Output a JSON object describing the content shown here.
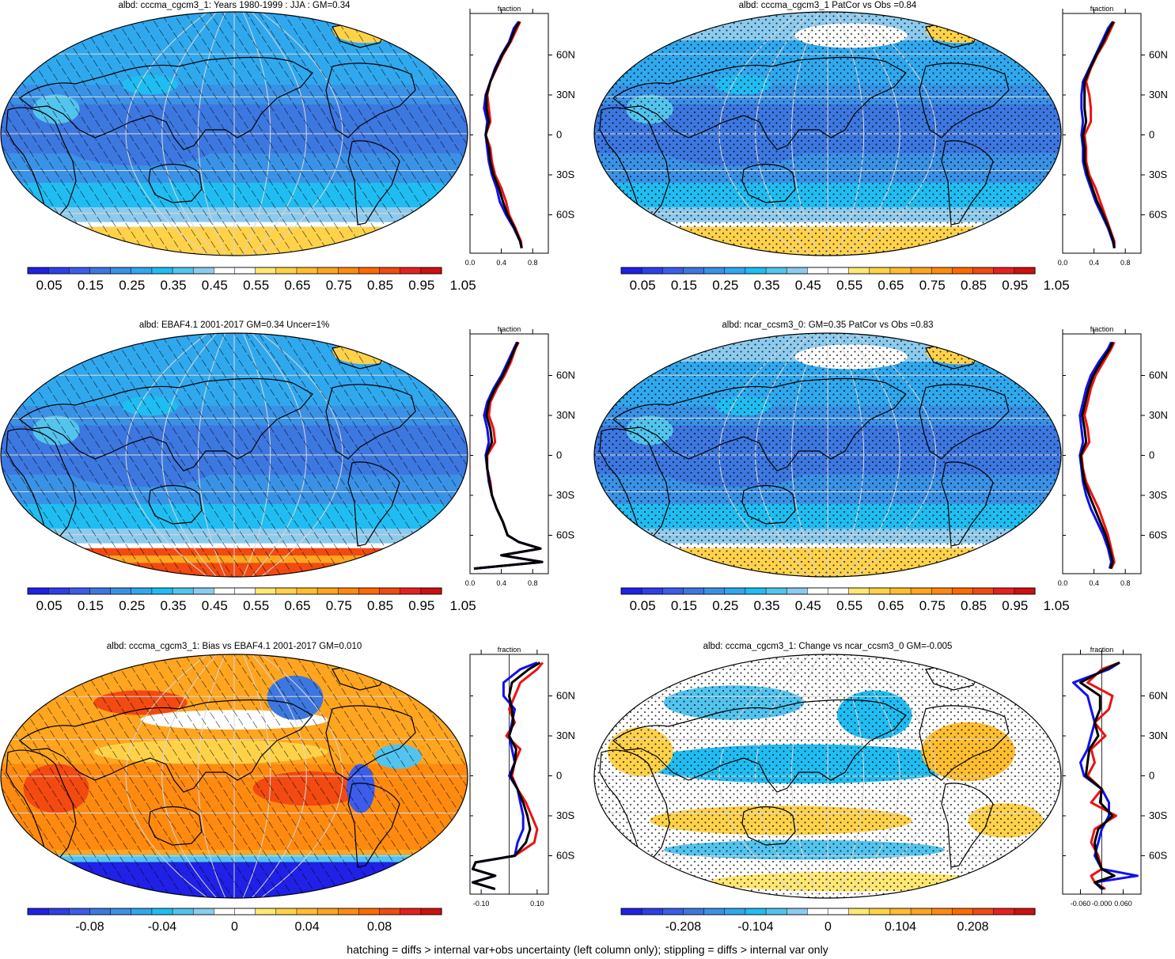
{
  "footnote": "hatching = diffs > internal var+obs uncertainty (left column only); stippling = diffs > internal var only",
  "panel_titles": [
    "albd: cccma_cgcm3_1: Years 1980-1999 : JJA : GM=0.34",
    "albd: cccma_cgcm3_1 PatCor vs Obs =0.84",
    "albd: EBAF4.1 2001-2017 GM=0.34 Uncer=1%",
    "albd: ncar_ccsm3_0: GM=0.35 PatCor vs Obs =0.83",
    "albd: cccma_cgcm3_1: Bias vs EBAF4.1 2001-2017 GM=0.010",
    "albd: cccma_cgcm3_1: Change vs ncar_ccsm3_0 GM=-0.005"
  ],
  "colors": {
    "scale": [
      "#2020e6",
      "#2e3ee8",
      "#3c5ce9",
      "#3d77e0",
      "#3a92e6",
      "#30a8ee",
      "#20bdf2",
      "#52c4ee",
      "#8ccbee",
      "#ffffff",
      "#ffffff",
      "#ffe873",
      "#ffd24a",
      "#ffbe30",
      "#ffa520",
      "#ff8a10",
      "#ff6a00",
      "#f24a10",
      "#e62020",
      "#cc1010"
    ],
    "model": "#ee1111",
    "obs": "#1111ee",
    "mean": "#000000",
    "land_outline": "#000000",
    "grid": "#d8d8d8"
  },
  "chart_data": [
    {
      "type": "heatmap",
      "title": "albd: cccma_cgcm3_1: Years 1980-1999 : JJA : GM=0.34",
      "map_style": "abs_model",
      "overlay": "hatching",
      "colorbar_labels": [
        "0.05",
        "0.15",
        "0.25",
        "0.35",
        "0.45",
        "0.55",
        "0.65",
        "0.75",
        "0.85",
        "0.95",
        "1.05"
      ],
      "zonal": {
        "xlabel": "fraction",
        "xlim": [
          0,
          1.0
        ],
        "xticks": [
          "0.0",
          "0.4",
          "0.8"
        ],
        "yticks": [
          "60N",
          "30N",
          "0",
          "30S",
          "60S"
        ],
        "lat": [
          85,
          80,
          70,
          60,
          50,
          40,
          30,
          20,
          10,
          0,
          -10,
          -20,
          -30,
          -40,
          -50,
          -60,
          -70,
          -80,
          -85
        ],
        "series": [
          {
            "role": "model",
            "values": [
              0.64,
              0.6,
              0.52,
              0.42,
              0.34,
              0.26,
              0.22,
              0.24,
              0.26,
              0.2,
              0.26,
              0.28,
              0.32,
              0.4,
              0.46,
              0.5,
              0.58,
              0.65,
              0.66
            ]
          },
          {
            "role": "obs",
            "values": [
              0.62,
              0.56,
              0.5,
              0.4,
              0.32,
              0.26,
              0.2,
              0.18,
              0.22,
              0.2,
              0.22,
              0.24,
              0.28,
              0.34,
              0.38,
              0.46,
              0.56,
              0.64,
              0.66
            ]
          },
          {
            "role": "mean",
            "values": [
              0.63,
              0.58,
              0.51,
              0.41,
              0.33,
              0.26,
              0.21,
              0.21,
              0.24,
              0.2,
              0.24,
              0.26,
              0.3,
              0.37,
              0.42,
              0.48,
              0.57,
              0.64,
              0.66
            ]
          }
        ]
      }
    },
    {
      "type": "heatmap",
      "title": "albd: cccma_cgcm3_1 PatCor vs Obs =0.84",
      "map_style": "abs_ncar",
      "overlay": "stipple",
      "colorbar_labels": [
        "0.05",
        "0.15",
        "0.25",
        "0.35",
        "0.45",
        "0.55",
        "0.65",
        "0.75",
        "0.85",
        "0.95",
        "1.05"
      ],
      "zonal": {
        "xlabel": "fraction",
        "xlim": [
          0,
          1.0
        ],
        "xticks": [
          "0.0",
          "0.4",
          "0.8"
        ],
        "yticks": [
          "60N",
          "30N",
          "0",
          "30S",
          "60S"
        ],
        "lat": [
          85,
          80,
          70,
          60,
          50,
          40,
          30,
          20,
          10,
          0,
          -10,
          -20,
          -30,
          -40,
          -50,
          -60,
          -70,
          -80,
          -85
        ],
        "series": [
          {
            "role": "model",
            "values": [
              0.66,
              0.62,
              0.54,
              0.44,
              0.36,
              0.3,
              0.34,
              0.36,
              0.36,
              0.28,
              0.3,
              0.3,
              0.34,
              0.42,
              0.48,
              0.54,
              0.6,
              0.66,
              0.66
            ]
          },
          {
            "role": "obs",
            "values": [
              0.64,
              0.58,
              0.5,
              0.42,
              0.34,
              0.26,
              0.24,
              0.24,
              0.26,
              0.24,
              0.26,
              0.26,
              0.3,
              0.36,
              0.42,
              0.5,
              0.58,
              0.64,
              0.66
            ]
          },
          {
            "role": "mean",
            "values": [
              0.65,
              0.6,
              0.52,
              0.43,
              0.35,
              0.28,
              0.28,
              0.28,
              0.3,
              0.26,
              0.28,
              0.28,
              0.32,
              0.38,
              0.44,
              0.52,
              0.59,
              0.65,
              0.66
            ]
          }
        ]
      }
    },
    {
      "type": "heatmap",
      "title": "albd: EBAF4.1 2001-2017 GM=0.34 Uncer=1%",
      "map_style": "abs_obs",
      "overlay": "hatching",
      "colorbar_labels": [
        "0.05",
        "0.15",
        "0.25",
        "0.35",
        "0.45",
        "0.55",
        "0.65",
        "0.75",
        "0.85",
        "0.95",
        "1.05"
      ],
      "zonal": {
        "xlabel": "fraction",
        "xlim": [
          0,
          1.0
        ],
        "xticks": [
          "0.0",
          "0.4",
          "0.8"
        ],
        "yticks": [
          "60N",
          "30N",
          "0",
          "30S",
          "60S"
        ],
        "lat": [
          85,
          80,
          70,
          60,
          50,
          40,
          30,
          20,
          10,
          0,
          -10,
          -20,
          -30,
          -40,
          -50,
          -60,
          -65,
          -70,
          -75,
          -80,
          -85
        ],
        "series": [
          {
            "role": "model",
            "values": [
              0.62,
              0.58,
              0.52,
              0.44,
              0.34,
              0.26,
              0.24,
              0.3,
              0.32,
              0.22,
              0.22,
              0.26,
              0.28,
              0.34,
              0.42,
              0.48,
              0.62,
              0.9,
              0.4,
              0.92,
              0.05
            ]
          },
          {
            "role": "obs",
            "values": [
              0.6,
              0.56,
              0.48,
              0.4,
              0.3,
              0.22,
              0.18,
              0.22,
              0.24,
              0.2,
              0.22,
              0.24,
              0.28,
              0.34,
              0.42,
              0.48,
              0.62,
              0.9,
              0.4,
              0.92,
              0.05
            ]
          },
          {
            "role": "mean",
            "values": [
              0.61,
              0.57,
              0.5,
              0.42,
              0.32,
              0.24,
              0.21,
              0.26,
              0.28,
              0.21,
              0.22,
              0.25,
              0.28,
              0.34,
              0.42,
              0.48,
              0.62,
              0.9,
              0.4,
              0.92,
              0.05
            ]
          }
        ]
      }
    },
    {
      "type": "heatmap",
      "title": "albd: ncar_ccsm3_0: GM=0.35 PatCor vs Obs =0.83",
      "map_style": "abs_ncar",
      "overlay": "stipple",
      "colorbar_labels": [
        "0.05",
        "0.15",
        "0.25",
        "0.35",
        "0.45",
        "0.55",
        "0.65",
        "0.75",
        "0.85",
        "0.95",
        "1.05"
      ],
      "zonal": {
        "xlabel": "fraction",
        "xlim": [
          0,
          1.0
        ],
        "xticks": [
          "0.0",
          "0.4",
          "0.8"
        ],
        "yticks": [
          "60N",
          "30N",
          "0",
          "30S",
          "60S"
        ],
        "lat": [
          85,
          80,
          70,
          60,
          50,
          40,
          30,
          20,
          10,
          0,
          -10,
          -20,
          -30,
          -40,
          -50,
          -60,
          -70,
          -80,
          -85
        ],
        "series": [
          {
            "role": "model",
            "values": [
              0.66,
              0.62,
              0.52,
              0.42,
              0.36,
              0.32,
              0.28,
              0.32,
              0.34,
              0.24,
              0.26,
              0.3,
              0.38,
              0.46,
              0.52,
              0.58,
              0.62,
              0.66,
              0.62
            ]
          },
          {
            "role": "obs",
            "values": [
              0.62,
              0.58,
              0.46,
              0.36,
              0.3,
              0.26,
              0.22,
              0.24,
              0.26,
              0.22,
              0.24,
              0.26,
              0.3,
              0.36,
              0.44,
              0.52,
              0.58,
              0.62,
              0.6
            ]
          },
          {
            "role": "mean",
            "values": [
              0.64,
              0.6,
              0.49,
              0.39,
              0.33,
              0.29,
              0.25,
              0.28,
              0.3,
              0.23,
              0.25,
              0.28,
              0.34,
              0.41,
              0.48,
              0.55,
              0.6,
              0.64,
              0.61
            ]
          }
        ]
      }
    },
    {
      "type": "heatmap",
      "title": "albd: cccma_cgcm3_1: Bias vs EBAF4.1 2001-2017 GM=0.010",
      "map_style": "bias",
      "overlay": "hatching",
      "colorbar_labels": [
        "-0.08",
        "-0.04",
        "0",
        "0.04",
        "0.08"
      ],
      "zonal": {
        "xlabel": "fraction",
        "xlim": [
          -0.14,
          0.14
        ],
        "xticks": [
          "-0.10",
          "0.10"
        ],
        "yticks": [
          "60N",
          "30N",
          "0",
          "30S",
          "60S"
        ],
        "lat": [
          85,
          80,
          70,
          60,
          50,
          40,
          30,
          20,
          10,
          0,
          -10,
          -20,
          -30,
          -40,
          -50,
          -60,
          -65,
          -70,
          -75,
          -80,
          -85
        ],
        "series": [
          {
            "role": "model",
            "values": [
              0.12,
              0.1,
              0.04,
              0.02,
              0.0,
              0.02,
              -0.01,
              0.04,
              0.02,
              0.01,
              0.03,
              0.06,
              0.08,
              0.1,
              0.09,
              0.02,
              -0.12,
              -0.13,
              -0.05,
              -0.13,
              -0.05
            ]
          },
          {
            "role": "obs",
            "values": [
              0.1,
              0.04,
              -0.02,
              -0.02,
              0.02,
              0.01,
              0.0,
              0.01,
              0.02,
              0.0,
              0.03,
              0.04,
              0.05,
              0.05,
              0.03,
              0.02,
              -0.12,
              -0.13,
              -0.05,
              -0.13,
              -0.05
            ]
          },
          {
            "role": "mean",
            "values": [
              0.11,
              0.07,
              0.01,
              0.0,
              0.01,
              0.015,
              0.0,
              0.025,
              0.02,
              0.005,
              0.03,
              0.05,
              0.065,
              0.075,
              0.06,
              0.02,
              -0.12,
              -0.13,
              -0.05,
              -0.13,
              -0.05
            ]
          }
        ]
      }
    },
    {
      "type": "heatmap",
      "title": "albd: cccma_cgcm3_1: Change vs ncar_ccsm3_0 GM=-0.005",
      "map_style": "change",
      "overlay": "stipple",
      "colorbar_labels": [
        "-0.208",
        "-0.104",
        "0",
        "0.104",
        "0.208"
      ],
      "zonal": {
        "xlabel": "fraction",
        "xlim": [
          -0.11,
          0.11
        ],
        "xticks": [
          "-0.060",
          "-0.000",
          "0.060"
        ],
        "yticks": [
          "60N",
          "30N",
          "0",
          "30S",
          "60S"
        ],
        "lat": [
          85,
          80,
          70,
          60,
          50,
          40,
          30,
          20,
          10,
          0,
          -10,
          -20,
          -30,
          -40,
          -50,
          -60,
          -70,
          -75,
          -80,
          -85
        ],
        "series": [
          {
            "role": "model",
            "values": [
              0.05,
              0.0,
              -0.04,
              0.03,
              0.02,
              -0.02,
              0.01,
              -0.03,
              -0.02,
              -0.04,
              0.0,
              -0.03,
              0.04,
              -0.02,
              -0.03,
              -0.01,
              0.0,
              -0.03,
              -0.02,
              0.01
            ]
          },
          {
            "role": "obs",
            "values": [
              0.05,
              0.02,
              -0.08,
              -0.04,
              -0.03,
              -0.02,
              -0.03,
              -0.04,
              -0.06,
              -0.05,
              0.0,
              0.02,
              0.02,
              0.0,
              -0.01,
              -0.02,
              0.0,
              0.1,
              -0.02,
              0.0
            ]
          },
          {
            "role": "mean",
            "values": [
              0.05,
              0.01,
              -0.06,
              -0.005,
              -0.005,
              -0.02,
              -0.01,
              -0.035,
              -0.04,
              -0.045,
              0.0,
              -0.005,
              0.03,
              -0.01,
              -0.02,
              -0.015,
              0.0,
              0.035,
              -0.02,
              0.005
            ]
          }
        ]
      }
    }
  ]
}
